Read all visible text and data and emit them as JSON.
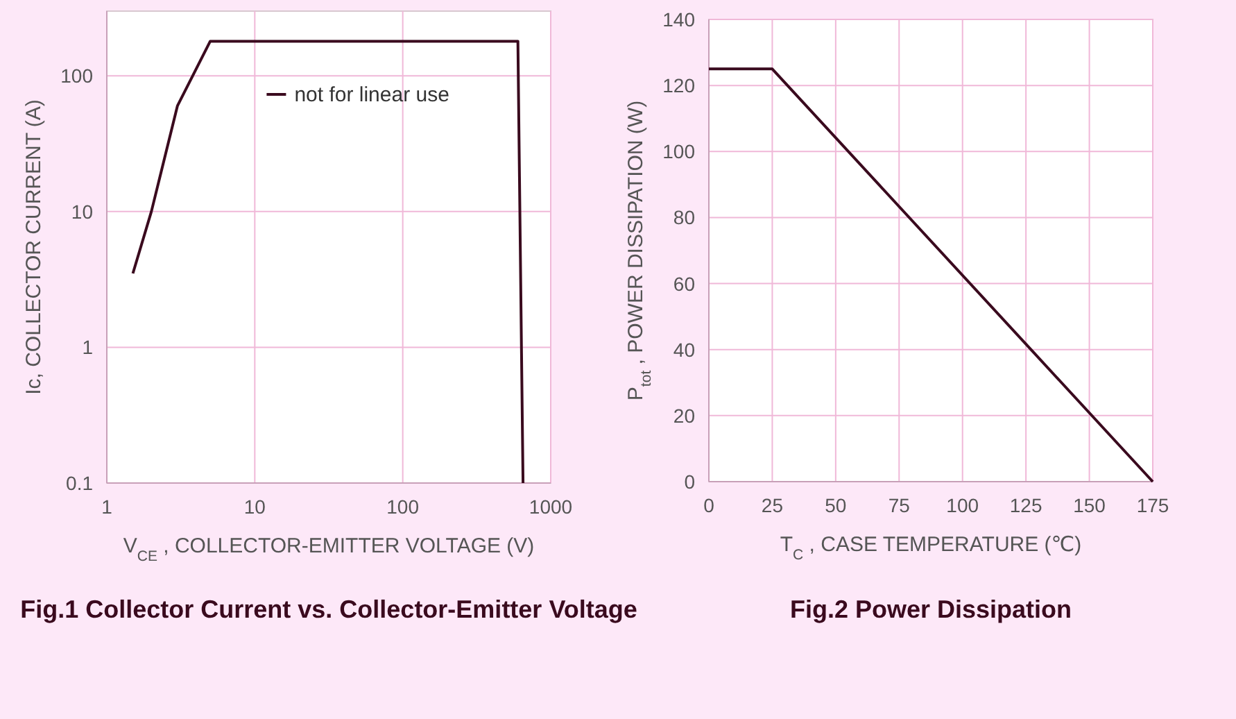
{
  "chart_data": [
    {
      "type": "line",
      "title": "Fig.1 Collector Current vs. Collector-Emitter Voltage",
      "xlabel": "V$_{CE}$ , COLLECTOR-EMITTER VOLTAGE (V)",
      "ylabel": "Ic, COLLECTOR CURRENT (A)",
      "log": "xy",
      "xlim": [
        1,
        1000
      ],
      "xticks": [
        1,
        10,
        100,
        1000
      ],
      "ylim": [
        0.1,
        300
      ],
      "yticks": [
        0.1,
        1,
        10,
        100
      ],
      "grid": true,
      "legend": "top",
      "line_style": "solid",
      "series": [
        {
          "name": "not for linear use",
          "color": "#3a0a1e",
          "x": [
            1.5,
            2,
            3,
            5,
            600,
            650
          ],
          "values": [
            3.5,
            10,
            60,
            180,
            180,
            0.1
          ]
        }
      ]
    },
    {
      "type": "line",
      "title": "Fig.2 Power Dissipation",
      "xlabel": "T$_{C}$ , CASE TEMPERATURE (℃)",
      "ylabel": "P$_{tot}$ , POWER DISSIPATION (W)",
      "xlim": [
        0,
        175
      ],
      "xticks": [
        0,
        25,
        50,
        75,
        100,
        125,
        150,
        175
      ],
      "ylim": [
        0,
        140
      ],
      "yticks": [
        0,
        20,
        40,
        60,
        80,
        100,
        120,
        140
      ],
      "grid": true,
      "line_style": "solid",
      "series": [
        {
          "color": "#3a0a1e",
          "x": [
            0,
            25,
            175
          ],
          "values": [
            125,
            125,
            0
          ]
        }
      ]
    }
  ]
}
